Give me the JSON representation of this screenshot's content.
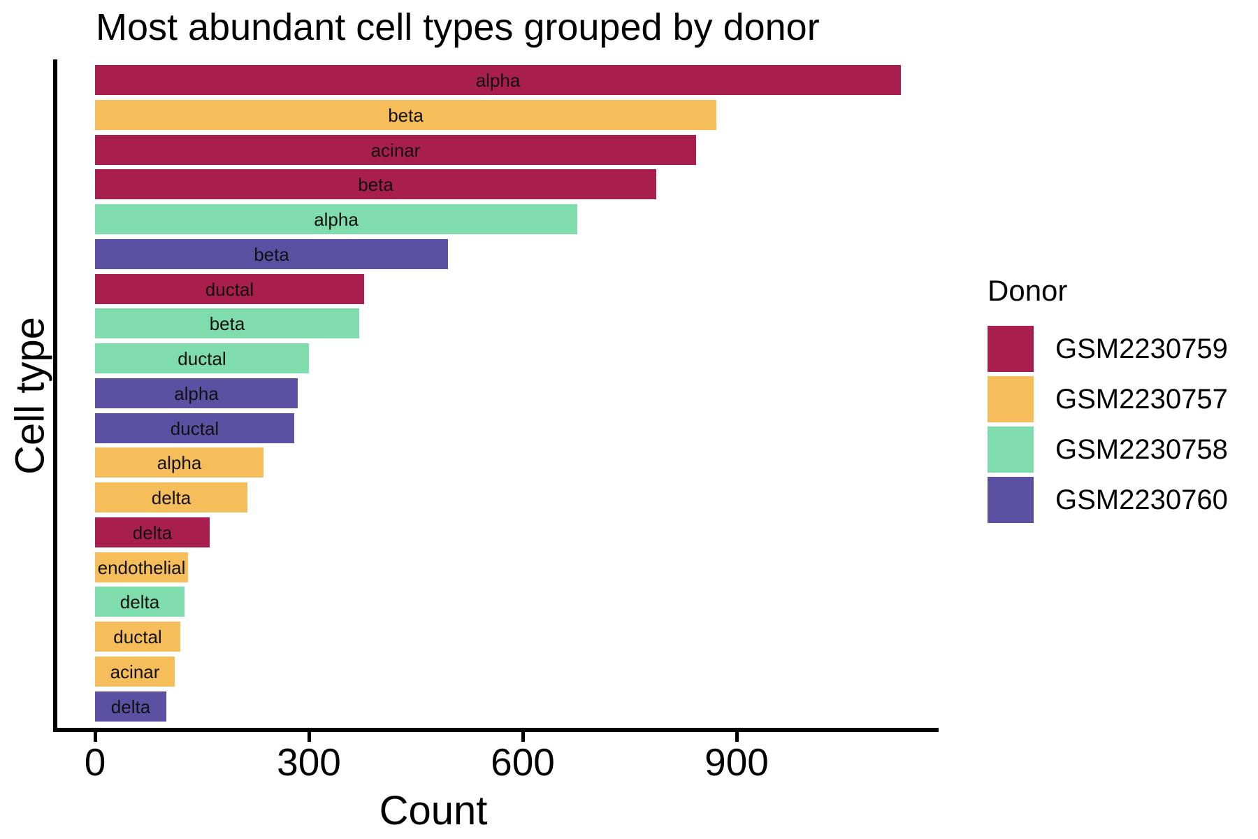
{
  "title": "Most abundant cell types grouped by donor",
  "axes": {
    "x_label": "Count",
    "y_label": "Cell type",
    "x_ticks": [
      0,
      300,
      600,
      900
    ]
  },
  "legend": {
    "title": "Donor",
    "entries": [
      {
        "label": "GSM2230759",
        "color": "#A81E4D"
      },
      {
        "label": "GSM2230757",
        "color": "#F6BE5B"
      },
      {
        "label": "GSM2230758",
        "color": "#7FDCAC"
      },
      {
        "label": "GSM2230760",
        "color": "#5C50A3"
      }
    ]
  },
  "chart_data": {
    "type": "bar",
    "orientation": "horizontal",
    "title": "Most abundant cell types grouped by donor",
    "xlabel": "Count",
    "ylabel": "Cell type",
    "xlim": [
      0,
      1185
    ],
    "x_ticks": [
      0,
      300,
      600,
      900
    ],
    "grid": false,
    "legend_title": "Donor",
    "legend_position": "right",
    "donor_colors": {
      "GSM2230759": "#A81E4D",
      "GSM2230757": "#F6BE5B",
      "GSM2230758": "#7FDCAC",
      "GSM2230760": "#5C50A3"
    },
    "bars": [
      {
        "cell_type": "alpha",
        "donor": "GSM2230759",
        "count": 1130
      },
      {
        "cell_type": "beta",
        "donor": "GSM2230757",
        "count": 872
      },
      {
        "cell_type": "acinar",
        "donor": "GSM2230759",
        "count": 843
      },
      {
        "cell_type": "beta",
        "donor": "GSM2230759",
        "count": 787
      },
      {
        "cell_type": "alpha",
        "donor": "GSM2230758",
        "count": 676
      },
      {
        "cell_type": "beta",
        "donor": "GSM2230760",
        "count": 495
      },
      {
        "cell_type": "ductal",
        "donor": "GSM2230759",
        "count": 377
      },
      {
        "cell_type": "beta",
        "donor": "GSM2230758",
        "count": 371
      },
      {
        "cell_type": "ductal",
        "donor": "GSM2230758",
        "count": 300
      },
      {
        "cell_type": "alpha",
        "donor": "GSM2230760",
        "count": 284
      },
      {
        "cell_type": "ductal",
        "donor": "GSM2230760",
        "count": 279
      },
      {
        "cell_type": "alpha",
        "donor": "GSM2230757",
        "count": 236
      },
      {
        "cell_type": "delta",
        "donor": "GSM2230757",
        "count": 214
      },
      {
        "cell_type": "delta",
        "donor": "GSM2230759",
        "count": 161
      },
      {
        "cell_type": "endothelial",
        "donor": "GSM2230757",
        "count": 130
      },
      {
        "cell_type": "delta",
        "donor": "GSM2230758",
        "count": 125
      },
      {
        "cell_type": "ductal",
        "donor": "GSM2230757",
        "count": 120
      },
      {
        "cell_type": "acinar",
        "donor": "GSM2230757",
        "count": 112
      },
      {
        "cell_type": "delta",
        "donor": "GSM2230760",
        "count": 100
      }
    ]
  }
}
